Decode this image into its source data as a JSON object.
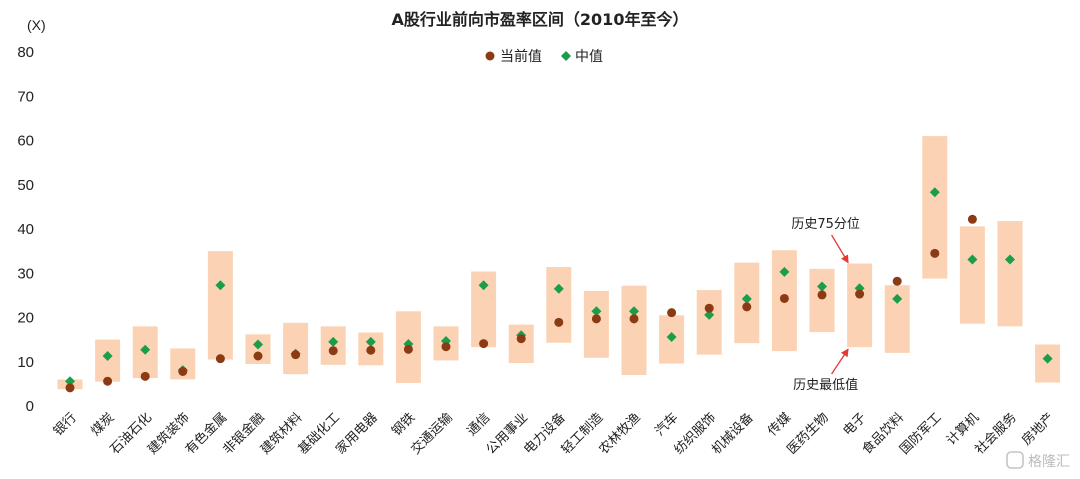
{
  "chart_data": {
    "type": "range_bar_with_markers",
    "title": "A股行业前向市盈率区间（2010年至今）",
    "unit": "(X)",
    "ylim": [
      0,
      80
    ],
    "yticks": [
      0,
      10,
      20,
      30,
      40,
      50,
      60,
      70,
      80
    ],
    "legend": {
      "current": "当前值",
      "median": "中值",
      "placement": "top-center"
    },
    "colors": {
      "range": "#fbd3b4",
      "current": "#8b3a14",
      "median": "#1a9e4a",
      "arrow": "#e53935"
    },
    "categories": [
      "银行",
      "煤炭",
      "石油石化",
      "建筑装饰",
      "有色金属",
      "非银金融",
      "建筑材料",
      "基础化工",
      "家用电器",
      "钢铁",
      "交通运输",
      "通信",
      "公用事业",
      "电力设备",
      "轻工制造",
      "农林牧渔",
      "汽车",
      "纺织服饰",
      "机械设备",
      "传媒",
      "医药生物",
      "电子",
      "食品饮料",
      "国防军工",
      "计算机",
      "社会服务",
      "房地产"
    ],
    "series": [
      {
        "name": "low",
        "values": [
          3.8,
          5.5,
          6.3,
          6.0,
          10.5,
          9.5,
          7.2,
          9.3,
          9.2,
          5.2,
          10.3,
          13.3,
          9.7,
          14.3,
          10.9,
          7.0,
          9.6,
          11.6,
          14.2,
          12.4,
          16.7,
          13.3,
          12.0,
          28.8,
          18.6,
          18.0,
          5.3
        ]
      },
      {
        "name": "high",
        "values": [
          6.0,
          15.0,
          18.0,
          13.0,
          35.0,
          16.2,
          18.8,
          18.0,
          16.6,
          21.4,
          18.0,
          30.4,
          18.4,
          31.4,
          26.0,
          27.2,
          20.5,
          26.2,
          32.4,
          35.2,
          31.0,
          32.2,
          27.3,
          61.0,
          40.6,
          41.8,
          13.9
        ]
      },
      {
        "name": "当前值",
        "values": [
          4.1,
          5.6,
          6.7,
          7.8,
          10.7,
          11.3,
          11.6,
          12.5,
          12.6,
          12.8,
          13.4,
          14.1,
          15.2,
          18.9,
          19.7,
          19.7,
          21.1,
          22.1,
          22.4,
          24.3,
          25.1,
          25.3,
          28.2,
          34.5,
          42.2,
          null,
          null
        ]
      },
      {
        "name": "中值",
        "values": [
          5.6,
          11.3,
          12.7,
          8.1,
          27.3,
          13.9,
          11.8,
          14.5,
          14.5,
          14.0,
          14.7,
          27.3,
          16.0,
          26.5,
          21.4,
          21.4,
          15.6,
          20.6,
          24.2,
          30.3,
          27.0,
          26.6,
          24.2,
          48.3,
          33.1,
          33.1,
          10.7
        ]
      }
    ],
    "annotations": [
      {
        "text": "历史75分位",
        "category": "电子",
        "target": "high"
      },
      {
        "text": "历史最低值",
        "category": "电子",
        "target": "low"
      }
    ]
  },
  "watermark": "格隆汇"
}
